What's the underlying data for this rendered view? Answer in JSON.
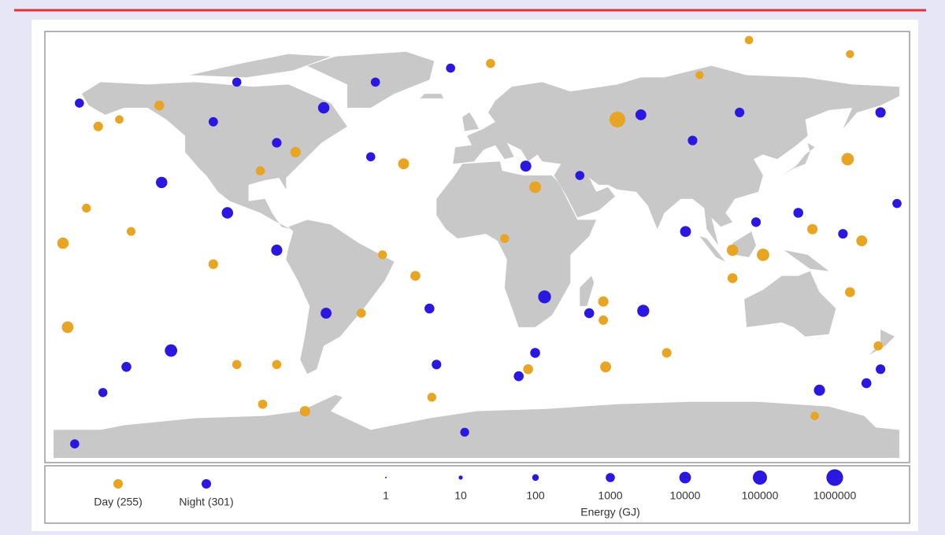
{
  "chart_data": {
    "type": "scatter",
    "xlim": [
      -180,
      180
    ],
    "ylim": [
      -90,
      90
    ],
    "series": [
      {
        "name": "Day (255)",
        "color": "#e8a423",
        "x": [
          60,
          25,
          -31,
          158,
          122,
          109,
          -174,
          -176,
          143,
          164,
          55,
          22,
          -73,
          -91,
          -19,
          6,
          116,
          -135,
          -77,
          -92,
          -152,
          -166,
          -147,
          -112,
          -102,
          -85,
          -40,
          -26,
          12,
          54,
          54,
          109,
          159,
          144,
          171,
          81,
          -49,
          -161,
          95,
          159
        ],
        "y": [
          55,
          26,
          36,
          38,
          -3,
          -1,
          -34,
          2,
          8,
          3,
          -51,
          -52,
          -70,
          -67,
          -64,
          79,
          89,
          61,
          41,
          33,
          55,
          17,
          7,
          -7,
          -50,
          -50,
          -3,
          -12,
          4,
          -23,
          -31,
          -13,
          -19,
          -72,
          -42,
          -45,
          -28,
          52,
          74,
          83
        ],
        "sizes": [
          440000,
          10000,
          5000,
          20000,
          20000,
          8000,
          10000,
          8000,
          3000,
          5000,
          5000,
          2000,
          3000,
          1000,
          800,
          1000,
          500,
          2000,
          3000,
          1000,
          500,
          800,
          700,
          1500,
          1000,
          1000,
          800,
          2000,
          800,
          3000,
          1200,
          2000,
          2000,
          500,
          1000,
          1500,
          1000,
          1500,
          400,
          400
        ]
      },
      {
        "name": "Night (301)",
        "color": "#2a18e0",
        "x": [
          29,
          -130,
          71,
          -65,
          -106,
          -134,
          -85,
          21,
          70,
          146,
          89,
          -64,
          -149,
          -169,
          -43,
          -11,
          172,
          179,
          -20,
          -17,
          18,
          25,
          48,
          92,
          112,
          137,
          166,
          -171,
          -5,
          -159,
          -85,
          -45,
          156,
          44,
          119,
          172,
          -112,
          -102
        ],
        "y": [
          -21,
          -44,
          -27,
          60,
          15,
          28,
          -1,
          35,
          57,
          -61,
          7,
          -28,
          -51,
          62,
          71,
          77,
          58,
          19,
          -26,
          -50,
          -55,
          -45,
          -28,
          46,
          58,
          15,
          -58,
          -84,
          -79,
          -62,
          45,
          39,
          6,
          31,
          11,
          -52,
          54,
          71
        ],
        "sizes": [
          30000,
          20000,
          15000,
          8000,
          8000,
          8000,
          6000,
          6000,
          5000,
          6000,
          5000,
          5000,
          2000,
          1000,
          1000,
          1000,
          3000,
          1000,
          2000,
          1500,
          2000,
          2000,
          2000,
          1500,
          1500,
          2000,
          2000,
          1000,
          800,
          1000,
          1500,
          1000,
          1500,
          1000,
          1500,
          1500,
          1200,
          1000
        ]
      }
    ],
    "size_legend": {
      "title": "Energy (GJ)",
      "values": [
        1,
        10,
        100,
        1000,
        10000,
        100000,
        1000000
      ]
    }
  }
}
